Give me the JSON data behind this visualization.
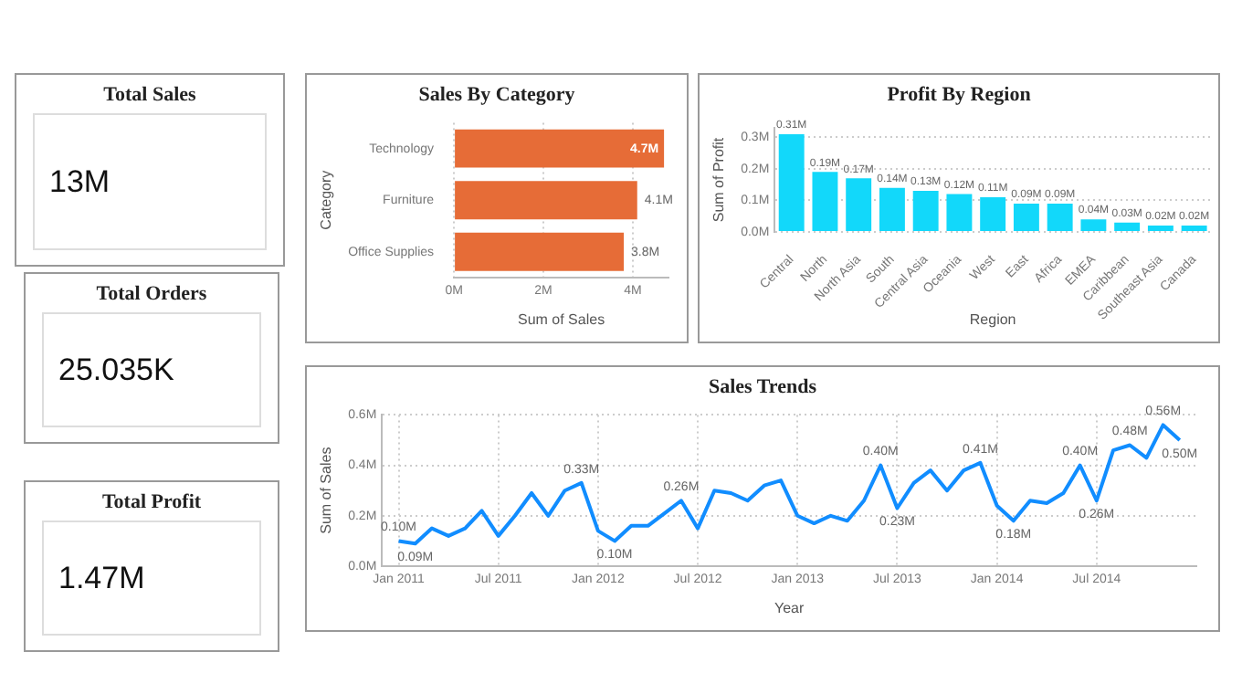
{
  "chart_data": [
    {
      "type": "other",
      "title": "Total Sales",
      "annotations": [
        "13M"
      ]
    },
    {
      "type": "bar",
      "title": "Sales By Category",
      "orientation": "horizontal",
      "xlabel": "Sum of Sales",
      "ylabel": "Category",
      "categories": [
        "Technology",
        "Furniture",
        "Office Supplies"
      ],
      "values": [
        4.7,
        4.1,
        3.8
      ],
      "value_labels": [
        "4.7M",
        "4.1M",
        "3.8M"
      ],
      "color": "#e66c37",
      "xlim": [
        0,
        4.8
      ],
      "xticks": [
        {
          "value": 0,
          "label": "0M"
        },
        {
          "value": 2,
          "label": "2M"
        },
        {
          "value": 4,
          "label": "4M"
        }
      ],
      "grid": "x"
    },
    {
      "type": "bar",
      "title": "Profit By Region",
      "xlabel": "Region",
      "ylabel": "Sum of Profit",
      "categories": [
        "Central",
        "North",
        "North Asia",
        "South",
        "Central Asia",
        "Oceania",
        "West",
        "East",
        "Africa",
        "EMEA",
        "Caribbean",
        "Southeast Asia",
        "Canada"
      ],
      "values": [
        0.31,
        0.19,
        0.17,
        0.14,
        0.13,
        0.12,
        0.11,
        0.09,
        0.09,
        0.04,
        0.03,
        0.02,
        0.02
      ],
      "value_labels": [
        "0.31M",
        "0.19M",
        "0.17M",
        "0.14M",
        "0.13M",
        "0.12M",
        "0.11M",
        "0.09M",
        "0.09M",
        "0.04M",
        "0.03M",
        "0.02M",
        "0.02M"
      ],
      "color": "#12d8fa",
      "ylim": [
        0,
        0.33
      ],
      "yticks": [
        {
          "value": 0,
          "label": "0.0M"
        },
        {
          "value": 0.1,
          "label": "0.1M"
        },
        {
          "value": 0.2,
          "label": "0.2M"
        },
        {
          "value": 0.3,
          "label": "0.3M"
        }
      ],
      "grid": "y"
    },
    {
      "type": "other",
      "title": "Total Orders",
      "annotations": [
        "25.035K"
      ]
    },
    {
      "type": "other",
      "title": "Total Profit",
      "annotations": [
        "1.47M"
      ]
    },
    {
      "type": "line",
      "title": "Sales Trends",
      "xlabel": "Year",
      "ylabel": "Sum of Sales",
      "color": "#118dff",
      "marker": "none",
      "x": [
        "2011-01",
        "2011-02",
        "2011-03",
        "2011-04",
        "2011-05",
        "2011-06",
        "2011-07",
        "2011-08",
        "2011-09",
        "2011-10",
        "2011-11",
        "2011-12",
        "2012-01",
        "2012-02",
        "2012-03",
        "2012-04",
        "2012-05",
        "2012-06",
        "2012-07",
        "2012-08",
        "2012-09",
        "2012-10",
        "2012-11",
        "2012-12",
        "2013-01",
        "2013-02",
        "2013-03",
        "2013-04",
        "2013-05",
        "2013-06",
        "2013-07",
        "2013-08",
        "2013-09",
        "2013-10",
        "2013-11",
        "2013-12",
        "2014-01",
        "2014-02",
        "2014-03",
        "2014-04",
        "2014-05",
        "2014-06",
        "2014-07",
        "2014-08",
        "2014-09",
        "2014-10",
        "2014-11",
        "2014-12"
      ],
      "values": [
        0.1,
        0.09,
        0.15,
        0.12,
        0.15,
        0.22,
        0.12,
        0.2,
        0.29,
        0.2,
        0.3,
        0.33,
        0.14,
        0.1,
        0.16,
        0.16,
        0.21,
        0.26,
        0.15,
        0.3,
        0.29,
        0.26,
        0.32,
        0.34,
        0.2,
        0.17,
        0.2,
        0.18,
        0.26,
        0.4,
        0.23,
        0.33,
        0.38,
        0.3,
        0.38,
        0.41,
        0.24,
        0.18,
        0.26,
        0.25,
        0.29,
        0.4,
        0.26,
        0.46,
        0.48,
        0.43,
        0.56,
        0.5
      ],
      "value_labels": [
        "0.10M",
        "0.09M",
        null,
        null,
        null,
        null,
        null,
        null,
        null,
        null,
        null,
        "0.33M",
        null,
        "0.10M",
        null,
        null,
        null,
        "0.26M",
        null,
        null,
        null,
        null,
        null,
        null,
        null,
        null,
        null,
        null,
        null,
        "0.40M",
        "0.23M",
        null,
        null,
        null,
        null,
        "0.41M",
        null,
        "0.18M",
        null,
        null,
        null,
        "0.40M",
        "0.26M",
        null,
        "0.48M",
        null,
        "0.56M",
        "0.50M"
      ],
      "xlim": [
        "2010-12",
        "2015-01"
      ],
      "xticks": [
        {
          "value": "2011-01",
          "label": "Jan 2011"
        },
        {
          "value": "2011-07",
          "label": "Jul 2011"
        },
        {
          "value": "2012-01",
          "label": "Jan 2012"
        },
        {
          "value": "2012-07",
          "label": "Jul 2012"
        },
        {
          "value": "2013-01",
          "label": "Jan 2013"
        },
        {
          "value": "2013-07",
          "label": "Jul 2013"
        },
        {
          "value": "2014-01",
          "label": "Jan 2014"
        },
        {
          "value": "2014-07",
          "label": "Jul 2014"
        }
      ],
      "ylim": [
        0,
        0.6
      ],
      "yticks": [
        {
          "value": 0,
          "label": "0.0M"
        },
        {
          "value": 0.2,
          "label": "0.2M"
        },
        {
          "value": 0.4,
          "label": "0.4M"
        },
        {
          "value": 0.6,
          "label": "0.6M"
        }
      ],
      "grid": true
    }
  ]
}
